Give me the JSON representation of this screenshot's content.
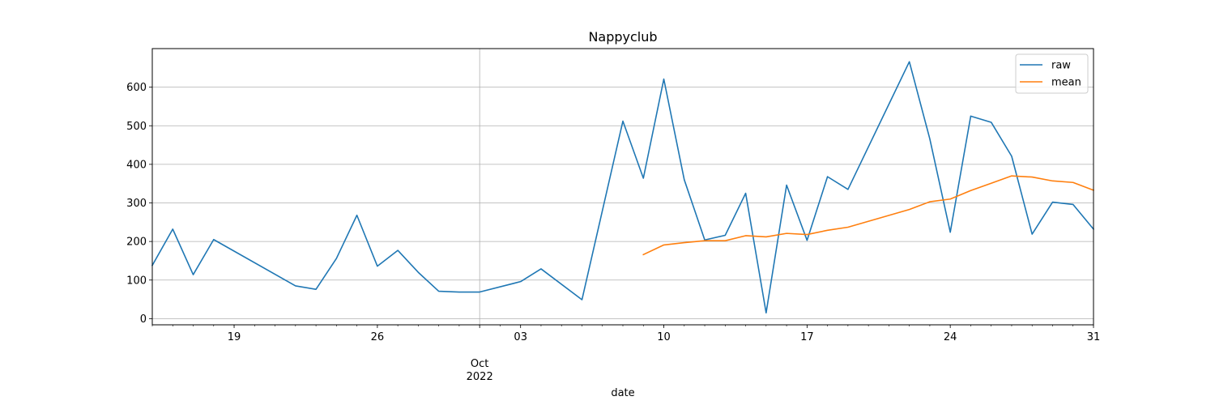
{
  "chart_data": {
    "type": "line",
    "title": "Nappyclub",
    "xlabel": "date",
    "ylabel": "",
    "xlim": [
      "2022-09-15",
      "2022-10-31"
    ],
    "ylim": [
      -16,
      700
    ],
    "grid": true,
    "legend_position": "top-right",
    "x_major_ticks": [
      {
        "date": "2022-09-19",
        "label": "19"
      },
      {
        "date": "2022-09-26",
        "label": "26"
      },
      {
        "date": "2022-10-01",
        "label": "Oct\n2022"
      },
      {
        "date": "2022-10-03",
        "label": "03"
      },
      {
        "date": "2022-10-10",
        "label": "10"
      },
      {
        "date": "2022-10-17",
        "label": "17"
      },
      {
        "date": "2022-10-24",
        "label": "24"
      },
      {
        "date": "2022-10-31",
        "label": "31"
      }
    ],
    "y_ticks": [
      0,
      100,
      200,
      300,
      400,
      500,
      600
    ],
    "series": [
      {
        "name": "raw",
        "color": "#1f77b4",
        "points": [
          {
            "x": "2022-09-15",
            "y": 138
          },
          {
            "x": "2022-09-16",
            "y": 232
          },
          {
            "x": "2022-09-17",
            "y": 114
          },
          {
            "x": "2022-09-18",
            "y": 205
          },
          {
            "x": "2022-09-22",
            "y": 85
          },
          {
            "x": "2022-09-23",
            "y": 76
          },
          {
            "x": "2022-09-24",
            "y": 156
          },
          {
            "x": "2022-09-25",
            "y": 268
          },
          {
            "x": "2022-09-26",
            "y": 136
          },
          {
            "x": "2022-09-27",
            "y": 177
          },
          {
            "x": "2022-09-28",
            "y": 120
          },
          {
            "x": "2022-09-29",
            "y": 71
          },
          {
            "x": "2022-09-30",
            "y": 69
          },
          {
            "x": "2022-10-01",
            "y": 69
          },
          {
            "x": "2022-10-03",
            "y": 96
          },
          {
            "x": "2022-10-04",
            "y": 129
          },
          {
            "x": "2022-10-06",
            "y": 49
          },
          {
            "x": "2022-10-08",
            "y": 512
          },
          {
            "x": "2022-10-09",
            "y": 364
          },
          {
            "x": "2022-10-10",
            "y": 621
          },
          {
            "x": "2022-10-11",
            "y": 360
          },
          {
            "x": "2022-10-12",
            "y": 204
          },
          {
            "x": "2022-10-13",
            "y": 216
          },
          {
            "x": "2022-10-14",
            "y": 325
          },
          {
            "x": "2022-10-15",
            "y": 15
          },
          {
            "x": "2022-10-16",
            "y": 346
          },
          {
            "x": "2022-10-17",
            "y": 203
          },
          {
            "x": "2022-10-18",
            "y": 368
          },
          {
            "x": "2022-10-19",
            "y": 335
          },
          {
            "x": "2022-10-22",
            "y": 666
          },
          {
            "x": "2022-10-23",
            "y": 466
          },
          {
            "x": "2022-10-24",
            "y": 224
          },
          {
            "x": "2022-10-25",
            "y": 525
          },
          {
            "x": "2022-10-26",
            "y": 509
          },
          {
            "x": "2022-10-27",
            "y": 421
          },
          {
            "x": "2022-10-28",
            "y": 219
          },
          {
            "x": "2022-10-29",
            "y": 302
          },
          {
            "x": "2022-10-30",
            "y": 296
          },
          {
            "x": "2022-10-31",
            "y": 232
          }
        ]
      },
      {
        "name": "mean",
        "color": "#ff7f0e",
        "points": [
          {
            "x": "2022-10-09",
            "y": 166
          },
          {
            "x": "2022-10-10",
            "y": 191
          },
          {
            "x": "2022-10-11",
            "y": 197
          },
          {
            "x": "2022-10-12",
            "y": 202
          },
          {
            "x": "2022-10-13",
            "y": 202
          },
          {
            "x": "2022-10-14",
            "y": 215
          },
          {
            "x": "2022-10-15",
            "y": 212
          },
          {
            "x": "2022-10-16",
            "y": 221
          },
          {
            "x": "2022-10-17",
            "y": 218
          },
          {
            "x": "2022-10-18",
            "y": 229
          },
          {
            "x": "2022-10-19",
            "y": 237
          },
          {
            "x": "2022-10-22",
            "y": 283
          },
          {
            "x": "2022-10-23",
            "y": 303
          },
          {
            "x": "2022-10-24",
            "y": 310
          },
          {
            "x": "2022-10-25",
            "y": 332
          },
          {
            "x": "2022-10-26",
            "y": 351
          },
          {
            "x": "2022-10-27",
            "y": 370
          },
          {
            "x": "2022-10-28",
            "y": 367
          },
          {
            "x": "2022-10-29",
            "y": 357
          },
          {
            "x": "2022-10-30",
            "y": 353
          },
          {
            "x": "2022-10-31",
            "y": 333
          }
        ]
      }
    ]
  }
}
